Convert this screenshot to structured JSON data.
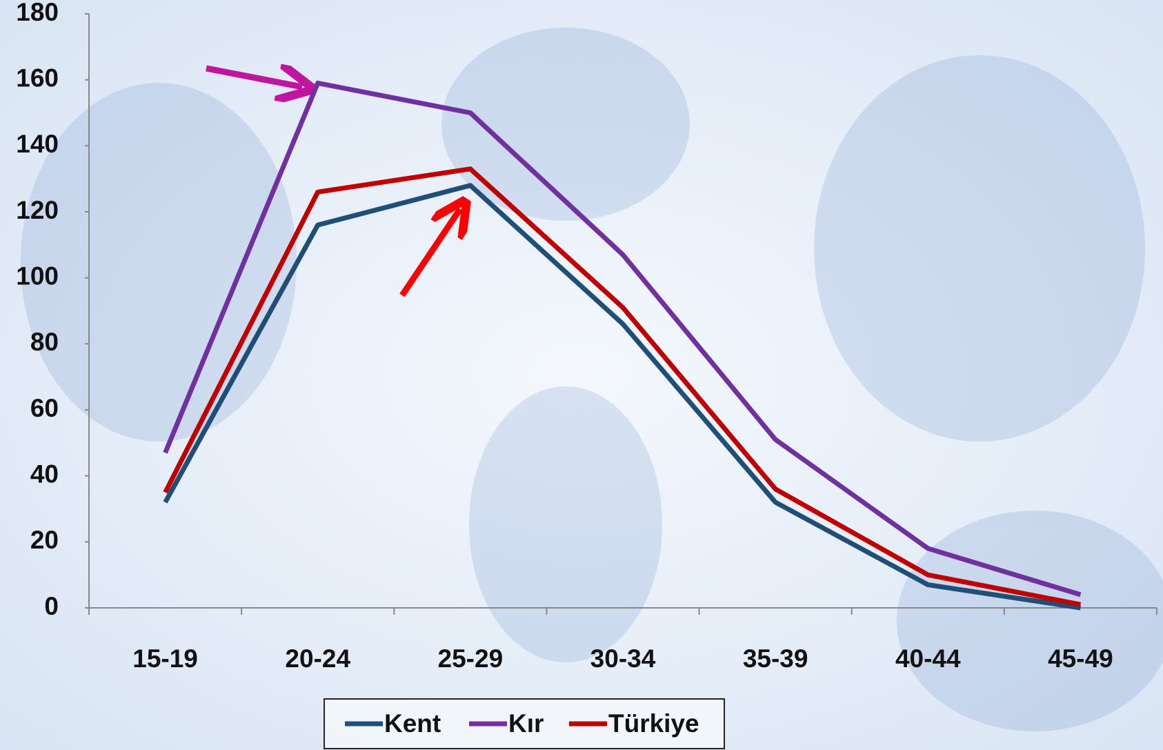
{
  "chart_data": {
    "type": "line",
    "categories": [
      "15-19",
      "20-24",
      "25-29",
      "30-34",
      "35-39",
      "40-44",
      "45-49"
    ],
    "series": [
      {
        "name": "Kent",
        "color": "#1f4e79",
        "values": [
          32,
          116,
          128,
          86,
          32,
          7,
          0
        ]
      },
      {
        "name": "Kır",
        "color": "#7030a0",
        "values": [
          47,
          159,
          150,
          107,
          51,
          18,
          4
        ]
      },
      {
        "name": "Türkiye",
        "color": "#c00000",
        "values": [
          35,
          126,
          133,
          91,
          36,
          10,
          1
        ]
      }
    ],
    "ylim": [
      0,
      180
    ],
    "yticks": [
      0,
      20,
      40,
      60,
      80,
      100,
      120,
      140,
      160,
      180
    ],
    "grid": false,
    "legend": "bottom"
  }
}
